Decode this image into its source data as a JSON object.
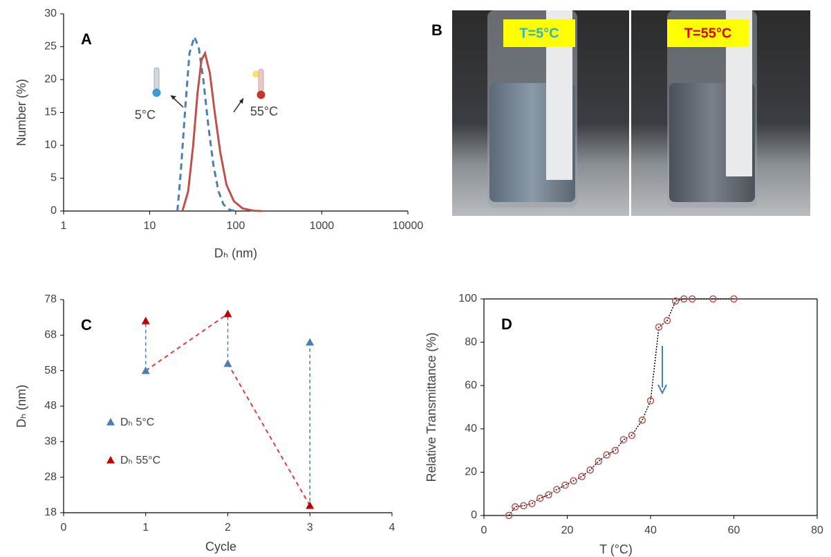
{
  "chart_data": [
    {
      "type": "line",
      "label": "A",
      "xlabel": "Dₕ (nm)",
      "ylabel": "Number (%)",
      "xlog": true,
      "xlim": [
        1,
        10000
      ],
      "xticks": [
        1,
        10,
        100,
        1000,
        10000
      ],
      "ylim": [
        0,
        30
      ],
      "yticks": [
        0,
        5,
        10,
        15,
        20,
        25,
        30
      ],
      "annotations": [
        "5°C",
        "55°C"
      ],
      "series": [
        {
          "color": "#4a7fb5",
          "dash": true,
          "x": [
            21,
            23,
            26,
            29,
            33,
            37,
            42,
            48,
            55,
            63,
            72,
            85,
            100
          ],
          "values": [
            0,
            6,
            16,
            24,
            26.5,
            25,
            20,
            13,
            7,
            3,
            1,
            0.2,
            0
          ]
        },
        {
          "color": "#c0504d",
          "dash": false,
          "x": [
            24,
            28,
            32,
            36,
            40,
            44,
            50,
            57,
            66,
            78,
            95,
            120,
            160,
            200
          ],
          "values": [
            0,
            3,
            10,
            18,
            23,
            24,
            21,
            15,
            9,
            4,
            1.5,
            0.4,
            0.05,
            0
          ]
        }
      ]
    },
    {
      "type": "scatter",
      "label": "C",
      "xlabel": "Cycle",
      "ylabel": "Dₕ (nm)",
      "xlim": [
        0,
        4
      ],
      "xticks": [
        0,
        1,
        2,
        3,
        4
      ],
      "ylim": [
        18,
        78
      ],
      "yticks": [
        18,
        28,
        38,
        48,
        58,
        68,
        78
      ],
      "marker": "triangle",
      "legend": "left",
      "series": [
        {
          "name": "Dₕ 5°C",
          "color": "#4a7fb5",
          "x": [
            1,
            2,
            3
          ],
          "values": [
            58,
            60,
            66
          ]
        },
        {
          "name": "Dₕ 55°C",
          "color": "#c00000",
          "x": [
            1,
            2,
            3
          ],
          "values": [
            72,
            74,
            20
          ]
        }
      ]
    },
    {
      "type": "scatter",
      "label": "D",
      "xlabel": "T (°C)",
      "ylabel": "Relative Transmittance (%)",
      "xlim": [
        0,
        80
      ],
      "xticks": [
        0,
        20,
        40,
        60,
        80
      ],
      "ylim": [
        0,
        100
      ],
      "yticks": [
        0,
        20,
        40,
        60,
        80,
        100
      ],
      "marker": "circle",
      "box": true,
      "line_color": "#000000",
      "series": [
        {
          "color": "#c0504d",
          "x": [
            6,
            7.5,
            9.5,
            11.5,
            13.5,
            15.5,
            17.5,
            19.5,
            21.5,
            23.5,
            25.5,
            27.5,
            29.5,
            31.5,
            33.5,
            35.5,
            38,
            40,
            42,
            44,
            46,
            48,
            50,
            55,
            60
          ],
          "values": [
            0,
            4,
            4.5,
            5.5,
            8,
            9.5,
            12,
            14,
            16,
            18,
            21,
            25,
            28,
            30,
            35,
            37,
            44,
            53,
            87,
            90,
            99,
            100,
            100,
            100,
            100
          ]
        }
      ]
    }
  ],
  "photo": {
    "label": "B",
    "captions": [
      "T=5°C",
      "T=55°C"
    ]
  }
}
